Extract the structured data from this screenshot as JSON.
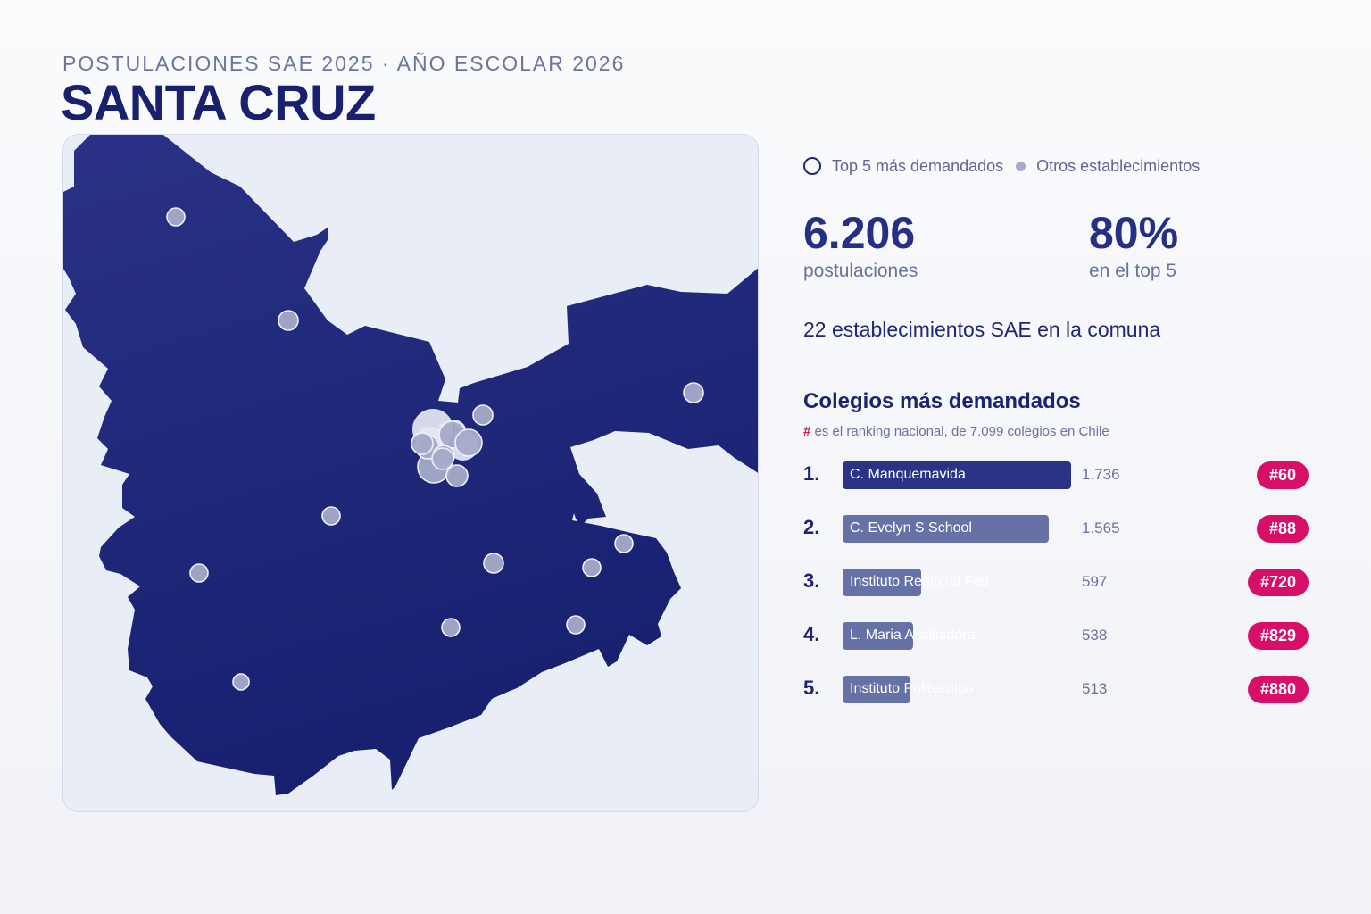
{
  "header": {
    "subtitle": "POSTULACIONES SAE 2025 · AÑO ESCOLAR 2026",
    "title": "SANTA CRUZ"
  },
  "legend": {
    "top5_label": "Top 5 más demandados",
    "others_label": "Otros establecimientos"
  },
  "kpis": {
    "applications_value": "6.206",
    "applications_label": "postulaciones",
    "top5_share_value": "80%",
    "top5_share_label": "en el top 5"
  },
  "establishments_line": "22 establecimientos SAE en la comuna",
  "ranking": {
    "title": "Colegios más demandados",
    "note_hash": "#",
    "note_rest": " es el ranking nacional, de 7.099 colegios en Chile",
    "items": [
      {
        "num": "1.",
        "name": "C. Manquemavida",
        "value": "1.736",
        "count": 1736,
        "rank": "#60"
      },
      {
        "num": "2.",
        "name": "C. Evelyn S School",
        "value": "1.565",
        "count": 1565,
        "rank": "#88"
      },
      {
        "num": "3.",
        "name": "Instituto Regional Fed",
        "value": "597",
        "count": 597,
        "rank": "#720"
      },
      {
        "num": "4.",
        "name": "L. Maria Auxiliadora",
        "value": "538",
        "count": 538,
        "rank": "#829"
      },
      {
        "num": "5.",
        "name": "Instituto Politecnico",
        "value": "513",
        "count": 513,
        "rank": "#880"
      }
    ]
  },
  "colors": {
    "territory": "#1f2779",
    "top_bar": "#2b3387",
    "other_bar": "#6671a6",
    "badge": "#d80f69",
    "dot": "#a6abc9",
    "background": "#e9edf6"
  }
}
